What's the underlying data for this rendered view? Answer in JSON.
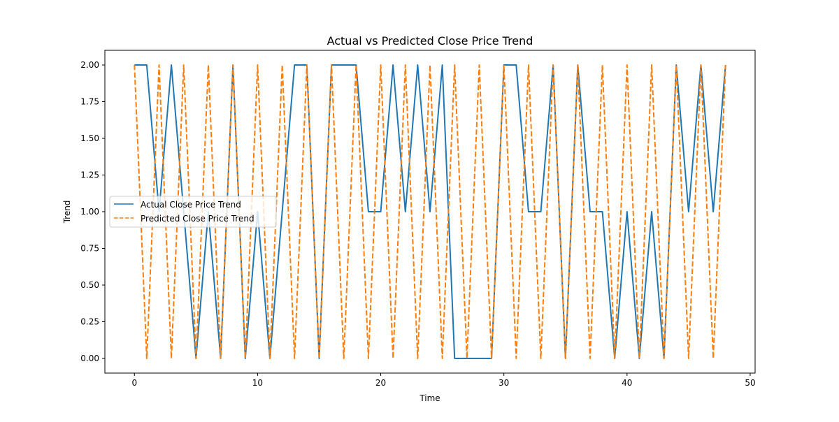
{
  "chart_data": {
    "type": "line",
    "title": "Actual vs Predicted Close Price Trend",
    "xlabel": "Time",
    "ylabel": "Trend",
    "xlim": [
      -2.4,
      50.4
    ],
    "ylim": [
      -0.1,
      2.1
    ],
    "xticks": [
      0,
      10,
      20,
      30,
      40,
      50
    ],
    "xtick_labels": [
      "0",
      "10",
      "20",
      "30",
      "40",
      "50"
    ],
    "yticks": [
      0,
      0.25,
      0.5,
      0.75,
      1.0,
      1.25,
      1.5,
      1.75,
      2.0
    ],
    "ytick_labels": [
      "0.00",
      "0.25",
      "0.50",
      "0.75",
      "1.00",
      "1.25",
      "1.50",
      "1.75",
      "2.00"
    ],
    "grid": false,
    "legend_position": "center-left",
    "x": [
      0,
      1,
      2,
      3,
      4,
      5,
      6,
      7,
      8,
      9,
      10,
      11,
      12,
      13,
      14,
      15,
      16,
      17,
      18,
      19,
      20,
      21,
      22,
      23,
      24,
      25,
      26,
      27,
      28,
      29,
      30,
      31,
      32,
      33,
      34,
      35,
      36,
      37,
      38,
      39,
      40,
      41,
      42,
      43,
      44,
      45,
      46,
      47,
      48
    ],
    "series": [
      {
        "name": "Actual Close Price Trend",
        "color": "#1f77b4",
        "style": "solid",
        "values": [
          2,
          2,
          1,
          2,
          1,
          0,
          1,
          0,
          2,
          0,
          1,
          0,
          1,
          2,
          2,
          0,
          2,
          2,
          2,
          1,
          1,
          2,
          1,
          2,
          1,
          2,
          0,
          0,
          0,
          0,
          2,
          2,
          1,
          1,
          2,
          0,
          2,
          1,
          1,
          0,
          1,
          0,
          1,
          0,
          2,
          1,
          2,
          1,
          2
        ]
      },
      {
        "name": "Predicted Close Price Trend",
        "color": "#ff7f0e",
        "style": "dashed",
        "values": [
          2,
          0,
          2,
          0,
          2,
          0,
          2,
          0,
          2,
          0,
          2,
          0,
          2,
          0,
          2,
          0,
          2,
          0,
          2,
          0,
          2,
          0,
          2,
          0,
          2,
          0,
          2,
          0,
          2,
          0,
          2,
          0,
          2,
          0,
          2,
          0,
          2,
          0,
          2,
          0,
          2,
          0,
          2,
          0,
          2,
          0,
          2,
          0,
          2
        ]
      }
    ]
  }
}
